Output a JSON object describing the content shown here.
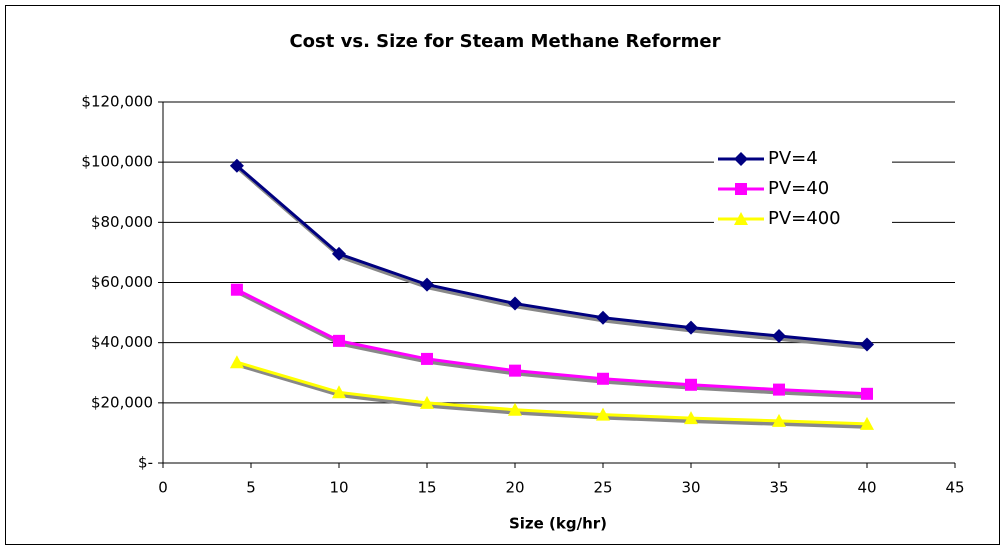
{
  "chart_data": {
    "type": "line",
    "title": "Cost vs. Size for Steam Methane Reformer",
    "x_label": "Size (kg/hr)",
    "x": [
      4.2,
      10,
      15,
      20,
      25,
      30,
      35,
      40
    ],
    "series": [
      {
        "name": "PV=4",
        "color": "#000080",
        "marker": "diamond",
        "values": [
          98800,
          69500,
          59300,
          53000,
          48300,
          45000,
          42200,
          39400
        ]
      },
      {
        "name": "PV=40",
        "color": "#ff00ff",
        "marker": "square",
        "values": [
          57600,
          40600,
          34600,
          30700,
          28000,
          26000,
          24400,
          23000
        ]
      },
      {
        "name": "PV=400",
        "color": "#ffff00",
        "marker": "triangle",
        "values": [
          33500,
          23500,
          20000,
          17700,
          16100,
          14900,
          14000,
          13000
        ]
      }
    ],
    "xlim": [
      0,
      45
    ],
    "xticks": [
      0,
      5,
      10,
      15,
      20,
      25,
      30,
      35,
      40,
      45
    ],
    "ylim": [
      0,
      120000
    ],
    "yticks": [
      {
        "value": 0,
        "label": "$-"
      },
      {
        "value": 20000,
        "label": "$20,000"
      },
      {
        "value": 40000,
        "label": "$40,000"
      },
      {
        "value": 60000,
        "label": "$60,000"
      },
      {
        "value": 80000,
        "label": "$80,000"
      },
      {
        "value": 100000,
        "label": "$100,000"
      },
      {
        "value": 120000,
        "label": "$120,000"
      }
    ],
    "grid": true,
    "legend": "top-right"
  }
}
